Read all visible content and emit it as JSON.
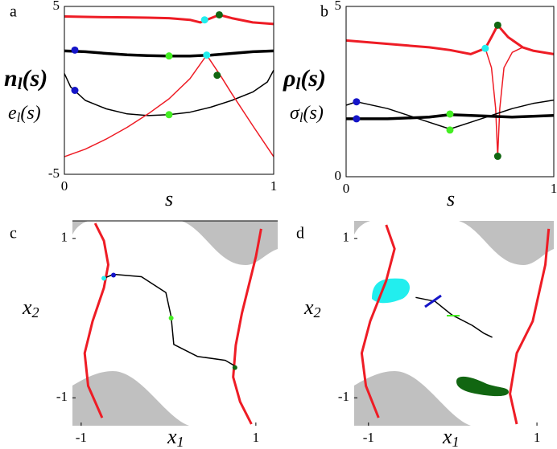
{
  "chart_data": [
    {
      "type": "line",
      "panel": "a",
      "xlabel": "s",
      "ylabels": [
        {
          "base": "n",
          "sub": "l",
          "arg": "(s)"
        },
        {
          "base": "e",
          "sub": "l",
          "arg": "(s)"
        }
      ],
      "xlim": [
        0,
        1
      ],
      "ylim": [
        -5,
        5
      ],
      "xticks": [
        0,
        1
      ],
      "yticks": [
        5,
        -5
      ],
      "series": [
        {
          "color": "#ee1c25",
          "width": 3,
          "x": [
            0,
            0.1,
            0.2,
            0.3,
            0.4,
            0.5,
            0.6,
            0.65,
            0.7,
            0.74,
            0.8,
            0.9,
            1
          ],
          "values": [
            4.4,
            4.38,
            4.36,
            4.35,
            4.33,
            4.3,
            4.2,
            4.05,
            4.3,
            4.5,
            4.3,
            4.05,
            3.95
          ]
        },
        {
          "color": "#000000",
          "width": 3.5,
          "x": [
            0,
            0.1,
            0.2,
            0.3,
            0.4,
            0.5,
            0.6,
            0.7,
            0.8,
            0.9,
            1
          ],
          "values": [
            2.35,
            2.3,
            2.2,
            2.12,
            2.07,
            2.05,
            2.05,
            2.1,
            2.2,
            2.3,
            2.35
          ]
        },
        {
          "color": "#000000",
          "width": 1.5,
          "x": [
            0,
            0.03,
            0.1,
            0.2,
            0.3,
            0.4,
            0.5,
            0.6,
            0.7,
            0.8,
            0.9,
            0.97,
            1
          ],
          "values": [
            1.0,
            0.2,
            -0.6,
            -1.1,
            -1.4,
            -1.5,
            -1.45,
            -1.3,
            -1.0,
            -0.6,
            -0.1,
            0.5,
            1.2
          ]
        },
        {
          "color": "#ee1c25",
          "width": 1.5,
          "x": [
            0,
            0.1,
            0.2,
            0.3,
            0.4,
            0.5,
            0.6,
            0.68,
            0.75,
            0.8,
            0.9,
            1
          ],
          "values": [
            -3.95,
            -3.5,
            -2.9,
            -2.2,
            -1.4,
            -0.5,
            0.7,
            2.1,
            0.8,
            -0.2,
            -2.1,
            -3.95
          ]
        }
      ],
      "points": [
        {
          "x": 0.05,
          "y": 2.4,
          "color": "#1515c8"
        },
        {
          "x": 0.05,
          "y": 0.0,
          "color": "#1515c8"
        },
        {
          "x": 0.5,
          "y": 2.05,
          "color": "#44ee22"
        },
        {
          "x": 0.5,
          "y": -1.45,
          "color": "#44ee22"
        },
        {
          "x": 0.67,
          "y": 4.2,
          "color": "#22eeee"
        },
        {
          "x": 0.68,
          "y": 2.1,
          "color": "#22eeee"
        },
        {
          "x": 0.74,
          "y": 4.5,
          "color": "#116611"
        },
        {
          "x": 0.73,
          "y": 0.9,
          "color": "#116611"
        }
      ]
    },
    {
      "type": "line",
      "panel": "b",
      "xlabel": "s",
      "ylabels": [
        {
          "base": "ρ",
          "sub": "l",
          "arg": "(s)"
        },
        {
          "base": "σ",
          "sub": "l",
          "arg": "(s)"
        }
      ],
      "xlim": [
        0,
        1
      ],
      "ylim": [
        0,
        5
      ],
      "xticks": [
        0,
        1
      ],
      "yticks": [
        5,
        0
      ],
      "series": [
        {
          "color": "#ee1c25",
          "width": 3,
          "x": [
            0,
            0.1,
            0.2,
            0.3,
            0.4,
            0.5,
            0.6,
            0.67,
            0.7,
            0.73,
            0.78,
            0.85,
            0.9,
            1
          ],
          "values": [
            4.0,
            3.95,
            3.9,
            3.85,
            3.8,
            3.72,
            3.6,
            3.77,
            4.1,
            4.45,
            4.1,
            3.8,
            3.7,
            3.6
          ]
        },
        {
          "color": "#ee1c25",
          "width": 1.5,
          "x": [
            0.67,
            0.7,
            0.72,
            0.73,
            0.74,
            0.76,
            0.8,
            0.85
          ],
          "values": [
            3.77,
            3.2,
            2.0,
            0.6,
            2.0,
            3.2,
            3.65,
            3.8
          ]
        },
        {
          "color": "#000000",
          "width": 3.5,
          "x": [
            0,
            0.05,
            0.2,
            0.4,
            0.5,
            0.6,
            0.8,
            1
          ],
          "values": [
            1.7,
            1.7,
            1.7,
            1.75,
            1.82,
            1.8,
            1.75,
            1.8
          ]
        },
        {
          "color": "#000000",
          "width": 1.5,
          "x": [
            0,
            0.05,
            0.2,
            0.3,
            0.4,
            0.5,
            0.6,
            0.7,
            0.8,
            0.9,
            1
          ],
          "values": [
            2.1,
            2.2,
            2.0,
            1.8,
            1.6,
            1.4,
            1.6,
            1.8,
            2.0,
            2.15,
            2.25
          ]
        }
      ],
      "points": [
        {
          "x": 0.05,
          "y": 2.2,
          "color": "#1515c8"
        },
        {
          "x": 0.05,
          "y": 1.7,
          "color": "#1515c8"
        },
        {
          "x": 0.5,
          "y": 1.84,
          "color": "#44ee22"
        },
        {
          "x": 0.5,
          "y": 1.37,
          "color": "#44ee22"
        },
        {
          "x": 0.67,
          "y": 3.77,
          "color": "#22eeee"
        },
        {
          "x": 0.73,
          "y": 4.45,
          "color": "#116611"
        },
        {
          "x": 0.73,
          "y": 0.6,
          "color": "#116611"
        }
      ]
    },
    {
      "type": "line",
      "panel": "c",
      "xlabel": {
        "base": "x",
        "sub": "1"
      },
      "ylabel": {
        "base": "x",
        "sub": "2"
      },
      "xlim": [
        -1.1,
        1.25
      ],
      "ylim": [
        -1.35,
        1.22
      ],
      "xticks": [
        -1,
        1
      ],
      "yticks": [
        1,
        -1
      ],
      "series": [
        {
          "color": "#ee1c25",
          "width": 3,
          "x": [
            -0.84,
            -0.74,
            -0.69,
            -0.74,
            -0.87,
            -0.96,
            -0.92,
            -0.76
          ],
          "values": [
            1.19,
            0.97,
            0.67,
            0.38,
            -0.04,
            -0.44,
            -0.85,
            -1.25
          ]
        },
        {
          "color": "#ee1c25",
          "width": 3,
          "x": [
            1.06,
            1.0,
            0.84,
            0.77,
            0.74,
            0.82,
            0.95
          ],
          "values": [
            1.12,
            0.77,
            0.06,
            -0.34,
            -0.74,
            -1.05,
            -1.33
          ]
        },
        {
          "color": "#000000",
          "width": 1.5,
          "x": [
            -0.74,
            -0.63,
            -0.31,
            -0.03,
            0.03,
            0.06,
            0.33,
            0.65,
            0.76
          ],
          "values": [
            0.5,
            0.55,
            0.52,
            0.32,
            0.02,
            -0.33,
            -0.48,
            -0.53,
            -0.6
          ]
        }
      ],
      "points": [
        {
          "x": -0.74,
          "y": 0.5,
          "color": "#22eeee"
        },
        {
          "x": -0.63,
          "y": 0.54,
          "color": "#1515c8"
        },
        {
          "x": 0.03,
          "y": 0.0,
          "color": "#44ee22"
        },
        {
          "x": 0.76,
          "y": -0.62,
          "color": "#116611"
        }
      ]
    },
    {
      "type": "line",
      "panel": "d",
      "xlabel": {
        "base": "x",
        "sub": "1"
      },
      "ylabel": {
        "base": "x",
        "sub": "2"
      },
      "xlim": [
        -1.17,
        1.2
      ],
      "ylim": [
        -1.35,
        1.22
      ],
      "xticks": [
        -1,
        1
      ],
      "yticks": [
        1,
        -1
      ],
      "series": [
        {
          "color": "#ee1c25",
          "width": 3,
          "x": [
            -0.79,
            -0.69,
            -0.79,
            -0.98,
            -1.08,
            -1.03,
            -0.88
          ],
          "values": [
            1.17,
            0.87,
            0.47,
            -0.04,
            -0.44,
            -0.85,
            -1.25
          ]
        },
        {
          "color": "#ee1c25",
          "width": 3,
          "x": [
            1.14,
            1.1,
            0.95,
            0.76,
            0.68,
            0.76
          ],
          "values": [
            1.12,
            0.67,
            -0.04,
            -0.44,
            -0.95,
            -1.33
          ]
        },
        {
          "color": "#000000",
          "width": 1.5,
          "x": [
            -0.44,
            -0.21,
            -0.01,
            0.23,
            0.37,
            0.47
          ],
          "values": [
            0.26,
            0.21,
            0.04,
            -0.09,
            -0.19,
            -0.24
          ]
        }
      ],
      "points": []
    }
  ]
}
